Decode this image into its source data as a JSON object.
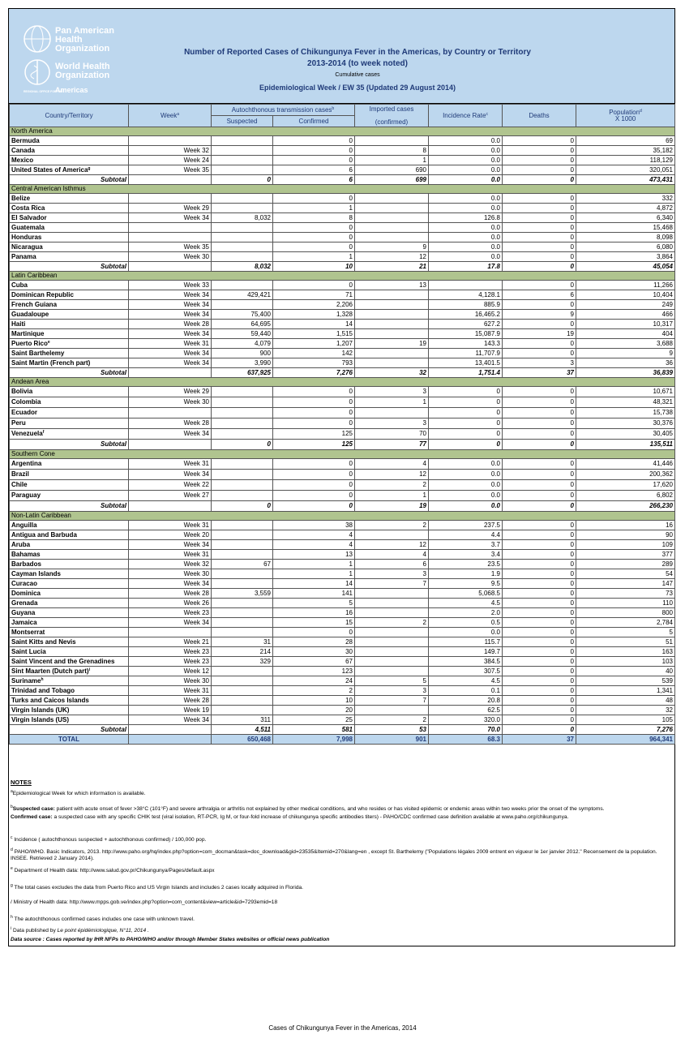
{
  "header": {
    "org_paho": [
      "Pan American",
      "Health",
      "Organization"
    ],
    "org_who": [
      "World Health",
      "Organization"
    ],
    "org_region": "REGIONAL OFFICE FOR THE",
    "org_americas": "Americas",
    "title": "Number of Reported  Cases of Chikungunya Fever  in the Americas, by Country or Territory",
    "subtitle": "2013-2014 (to week noted)",
    "cumulative": "Cumulative cases",
    "week": "Epidemiological Week / EW 35  (Updated 29 August 2014)"
  },
  "table": {
    "columns": {
      "country": "Country/Territory",
      "week": "Week",
      "week_sup": "a",
      "autochthonous": "Autochthonous transmission cases",
      "autochthonous_sup": "b",
      "suspected": "Suspected",
      "confirmed": "Confirmed",
      "imported": "Imported cases",
      "imported_sub": "(confirmed)",
      "incidence": "Incidence Rate",
      "incidence_sup": "c",
      "deaths": "Deaths",
      "population": "Population",
      "population_sup": "d",
      "population_sub": "X 1000"
    },
    "sections": [
      {
        "name": "North America",
        "rows": [
          [
            "Bermuda",
            null,
            null,
            "0",
            null,
            "0.0",
            "0",
            "69"
          ],
          [
            "Canada",
            "Week 32",
            null,
            "0",
            "8",
            "0.0",
            "0",
            "35,182"
          ],
          [
            "Mexico",
            "Week 24",
            null,
            "0",
            "1",
            "0.0",
            "0",
            "118,129"
          ],
          [
            {
              "text": "United States of America",
              "sup": "g"
            },
            "Week 35",
            null,
            "6",
            "690",
            "0.0",
            "0",
            "320,051"
          ]
        ],
        "subtotal": [
          "Subtotal",
          null,
          "0",
          "6",
          "699",
          "0.0",
          "0",
          "473,431"
        ]
      },
      {
        "name": "Central American Isthmus",
        "rows": [
          [
            "Belize",
            null,
            null,
            "0",
            null,
            "0.0",
            "0",
            "332"
          ],
          [
            "Costa Rica",
            "Week 29",
            null,
            "1",
            null,
            "0.0",
            "0",
            "4,872"
          ],
          [
            "El Salvador",
            "Week 34",
            "8,032",
            "8",
            null,
            "126.8",
            "0",
            "6,340"
          ],
          [
            "Guatemala",
            null,
            null,
            "0",
            null,
            "0.0",
            "0",
            "15,468"
          ],
          [
            "Honduras",
            null,
            null,
            "0",
            null,
            "0.0",
            "0",
            "8,098"
          ],
          [
            "Nicaragua",
            "Week 35",
            null,
            "0",
            "9",
            "0.0",
            "0",
            "6,080"
          ],
          [
            "Panama",
            "Week 30",
            null,
            "1",
            "12",
            "0.0",
            "0",
            "3,864"
          ]
        ],
        "subtotal": [
          "Subtotal",
          null,
          "8,032",
          "10",
          "21",
          "17.8",
          "0",
          "45,054"
        ]
      },
      {
        "name": "Latin Caribbean",
        "rows": [
          [
            "Cuba",
            "Week 33",
            null,
            "0",
            "13",
            null,
            "0",
            "11,266"
          ],
          [
            "Dominican Republic",
            "Week 34",
            "429,421",
            "71",
            null,
            "4,128.1",
            "6",
            "10,404"
          ],
          [
            "French Guiana",
            "Week 34",
            null,
            "2,206",
            null,
            "885.9",
            "0",
            "249"
          ],
          [
            "Guadaloupe",
            "Week 34",
            "75,400",
            "1,328",
            null,
            "16,465.2",
            "9",
            "466"
          ],
          [
            "Haiti",
            "Week 28",
            "64,695",
            "14",
            null,
            "627.2",
            "0",
            "10,317"
          ],
          [
            "Martinique",
            "Week 34",
            "59,440",
            "1,515",
            null,
            "15,087.9",
            "19",
            "404"
          ],
          [
            {
              "text": "Puerto Rico",
              "sup": "e"
            },
            "Week 31",
            "4,079",
            "1,207",
            "19",
            "143.3",
            "0",
            "3,688"
          ],
          [
            "Saint Barthelemy",
            "Week 34",
            "900",
            "142",
            null,
            "11,707.9",
            "0",
            "9"
          ],
          [
            "Saint Martin (French part)",
            "Week 34",
            "3,990",
            "793",
            null,
            "13,401.5",
            "3",
            "36"
          ]
        ],
        "subtotal": [
          "Subtotal",
          null,
          "637,925",
          "7,276",
          "32",
          "1,751.4",
          "37",
          "36,839"
        ]
      },
      {
        "name": "Andean Area",
        "rows": [
          [
            "Bolivia",
            "Week 29",
            null,
            "0",
            "3",
            "0",
            "0",
            "10,671"
          ],
          [
            "Colombia",
            "Week 30",
            null,
            "0",
            "1",
            "0",
            "0",
            "48,321"
          ],
          [
            "Ecuador",
            null,
            null,
            "0",
            null,
            "0",
            "0",
            "15,738"
          ],
          [
            "Peru",
            "Week 28",
            null,
            "0",
            "3",
            "0",
            "0",
            "30,376"
          ],
          [
            {
              "text": "Venezuela",
              "sup": "f"
            },
            "Week 34",
            null,
            "125",
            "70",
            "0",
            "0",
            "30,405"
          ]
        ],
        "subtotal": [
          "Subtotal",
          null,
          "0",
          "125",
          "77",
          "0",
          "0",
          "135,511"
        ]
      },
      {
        "name": "Southern Cone",
        "rows": [
          [
            "Argentina",
            "Week 31",
            null,
            "0",
            "4",
            "0.0",
            "0",
            "41,446"
          ],
          [
            "Brazil",
            "Week 34",
            null,
            "0",
            "12",
            "0.0",
            "0",
            "200,362"
          ],
          [
            "Chile",
            "Week 22",
            null,
            "0",
            "2",
            "0.0",
            "0",
            "17,620"
          ],
          [
            "Paraguay",
            "Week 27",
            null,
            "0",
            "1",
            "0.0",
            "0",
            "6,802"
          ]
        ],
        "subtotal": [
          "Subtotal",
          null,
          "0",
          "0",
          "19",
          "0.0",
          "0",
          "266,230"
        ]
      },
      {
        "name": "Non-Latin Caribbean",
        "rows": [
          [
            "Anguilla",
            "Week 31",
            null,
            "38",
            "2",
            "237.5",
            "0",
            "16"
          ],
          [
            "Antigua and Barbuda",
            "Week 20",
            null,
            "4",
            null,
            "4.4",
            "0",
            "90"
          ],
          [
            "Aruba",
            "Week 34",
            null,
            "4",
            "12",
            "3.7",
            "0",
            "109"
          ],
          [
            "Bahamas",
            "Week 31",
            null,
            "13",
            "4",
            "3.4",
            "0",
            "377"
          ],
          [
            "Barbados",
            "Week 32",
            "67",
            "1",
            "6",
            "23.5",
            "0",
            "289"
          ],
          [
            "Cayman Islands",
            "Week 30",
            null,
            "1",
            "3",
            "1.9",
            "0",
            "54"
          ],
          [
            "Curacao",
            "Week 34",
            null,
            "14",
            "7",
            "9.5",
            "0",
            "147"
          ],
          [
            "Dominica",
            "Week 28",
            "3,559",
            "141",
            null,
            "5,068.5",
            "0",
            "73"
          ],
          [
            "Grenada",
            "Week 26",
            null,
            "5",
            null,
            "4.5",
            "0",
            "110"
          ],
          [
            "Guyana",
            "Week 23",
            null,
            "16",
            null,
            "2.0",
            "0",
            "800"
          ],
          [
            "Jamaica",
            "Week 34",
            null,
            "15",
            "2",
            "0.5",
            "0",
            "2,784"
          ],
          [
            "Montserrat",
            null,
            null,
            "0",
            null,
            "0.0",
            "0",
            "5"
          ],
          [
            "Saint Kitts and Nevis",
            "Week 21",
            "31",
            "28",
            null,
            "115.7",
            "0",
            "51"
          ],
          [
            "Saint Lucia",
            "Week 23",
            "214",
            "30",
            null,
            "149.7",
            "0",
            "163"
          ],
          [
            "Saint Vincent and the Grenadines",
            "Week 23",
            "329",
            "67",
            null,
            "384.5",
            "0",
            "103"
          ],
          [
            {
              "text": "Sint Maarten (Dutch part)",
              "sup": "i"
            },
            "Week 12",
            null,
            "123",
            null,
            "307.5",
            "0",
            "40"
          ],
          [
            {
              "text": "Suriname",
              "sup": "h"
            },
            "Week 30",
            null,
            "24",
            "5",
            "4.5",
            "0",
            "539"
          ],
          [
            "Trinidad and Tobago",
            "Week 31",
            null,
            "2",
            "3",
            "0.1",
            "0",
            "1,341"
          ],
          [
            "Turks and Caicos Islands",
            "Week 28",
            null,
            "10",
            "7",
            "20.8",
            "0",
            "48"
          ],
          [
            "Virgin Islands (UK)",
            "Week 19",
            null,
            "20",
            null,
            "62.5",
            "0",
            "32"
          ],
          [
            "Virgin Islands (US)",
            "Week 34",
            "311",
            "25",
            "2",
            "320.0",
            "0",
            "105"
          ]
        ],
        "subtotal": [
          "Subtotal",
          null,
          "4,511",
          "581",
          "53",
          "70.0",
          "0",
          "7,276"
        ]
      }
    ],
    "total": [
      "TOTAL",
      null,
      "650,468",
      "7,998",
      "901",
      "68.3",
      "37",
      "964,341"
    ]
  },
  "notes": {
    "heading": "NOTES",
    "items": [
      {
        "sup": "a",
        "parts": [
          {
            "t": "Epidemiological Week for which information is available."
          }
        ]
      },
      {
        "sup": "b",
        "parts": [
          {
            "t": "Suspected case:",
            "s": "b"
          },
          {
            "t": " patient with acute onset of fever >38°C (101°F) and severe arthralgia or arthritis not explained by other medical conditions, and who resides or has visited epidemic or endemic areas within two weeks prior the onset of the symptoms."
          }
        ]
      },
      {
        "parts": [
          {
            "t": "Confirmed case:",
            "s": "b"
          },
          {
            "t": " a suspected case with any specific CHIK test (viral isolation, RT-PCR, Ig M, or four-fold increase of chikungunya specific antibodies titers) - PAHO/CDC  confirmed case definition available at www.paho.org/chikungunya."
          }
        ]
      },
      {
        "sup": "c",
        "parts": [
          {
            "t": " Incidence ( autochthonous suspected + autochthonous confirmed) / 100,000 pop."
          }
        ]
      },
      {
        "sup": "d",
        "parts": [
          {
            "t": " PAHO/WHO. Basic Indicators, 2013. http://www.paho.org/hq/index.php?option=com_docman&task=doc_download&gid=23535&Itemid=270&lang=en , except St. Barthelemy (\"Populations légales 2009 entrent en vigueur le 1er janvier 2012.\" Recensement de la population. INSEE. Retrieved 2 January 2014)."
          }
        ]
      },
      {
        "sup": "e",
        "parts": [
          {
            "t": " Department of Health data: http://www.salud.gov.pr/Chikungunya/Pages/default.aspx"
          }
        ]
      },
      {
        "sup": "g",
        "parts": [
          {
            "t": "  The total cases excludes the data from Puerto Rico and US Virgin Islands and includes 2 cases locally adquired in Florida."
          }
        ]
      },
      {
        "parts": [
          {
            "t": "/ Ministry of Health data: http://www.mpps.gob.ve/index.php?option=com_content&view=article&id=7293emid=18"
          }
        ]
      },
      {
        "sup": "h",
        "parts": [
          {
            "t": " The autochthonous confirmed cases includes one case with unknown travel."
          }
        ]
      },
      {
        "sup": "i",
        "parts": [
          {
            "t": " Data published by "
          },
          {
            "t": "Le point épidémiologique, N°11, 2014 .",
            "s": "i"
          }
        ]
      },
      {
        "parts": [
          {
            "t": "Data source : Cases reported by IHR NFPs to PAHO/WHO and/or through Member States websites or official news publication",
            "s": "bi"
          }
        ]
      }
    ]
  },
  "footer": "Cases of Chikungunya Fever in the Americas, 2014"
}
